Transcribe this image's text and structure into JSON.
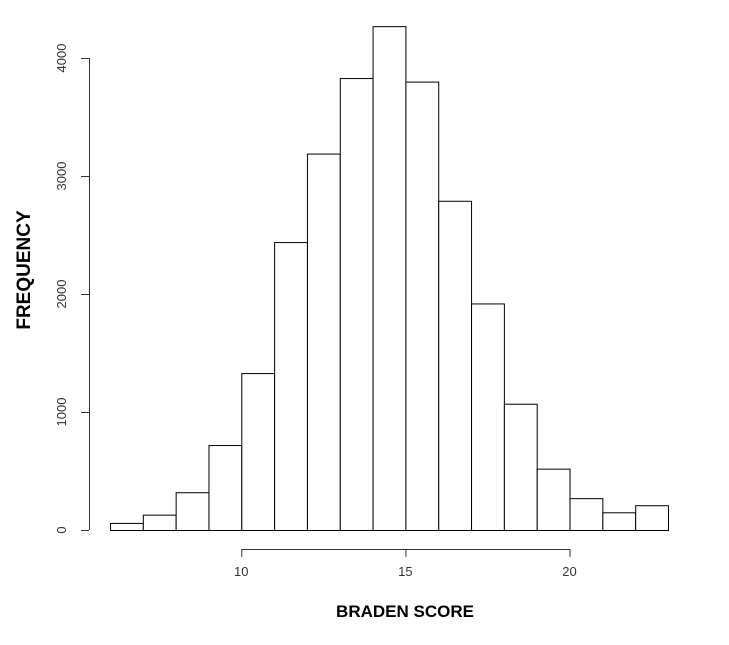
{
  "chart_data": {
    "type": "bar",
    "title": "",
    "xlabel": "BRADEN SCORE",
    "ylabel": "FREQUENCY",
    "bin_width": 1,
    "bins": [
      {
        "start": 6,
        "end": 7,
        "value": 60
      },
      {
        "start": 7,
        "end": 8,
        "value": 130
      },
      {
        "start": 8,
        "end": 9,
        "value": 320
      },
      {
        "start": 9,
        "end": 10,
        "value": 720
      },
      {
        "start": 10,
        "end": 11,
        "value": 1330
      },
      {
        "start": 11,
        "end": 12,
        "value": 2440
      },
      {
        "start": 12,
        "end": 13,
        "value": 3190
      },
      {
        "start": 13,
        "end": 14,
        "value": 3830
      },
      {
        "start": 14,
        "end": 15,
        "value": 4270
      },
      {
        "start": 15,
        "end": 16,
        "value": 3800
      },
      {
        "start": 16,
        "end": 17,
        "value": 2790
      },
      {
        "start": 17,
        "end": 18,
        "value": 1920
      },
      {
        "start": 18,
        "end": 19,
        "value": 1070
      },
      {
        "start": 19,
        "end": 20,
        "value": 520
      },
      {
        "start": 20,
        "end": 21,
        "value": 270
      },
      {
        "start": 21,
        "end": 22,
        "value": 150
      },
      {
        "start": 22,
        "end": 23,
        "value": 210
      }
    ],
    "xticks": [
      10,
      15,
      20
    ],
    "xticks_labels": [
      "10",
      "15",
      "20"
    ],
    "yticks": [
      0,
      1000,
      2000,
      3000,
      4000
    ],
    "yticks_labels": [
      "0",
      "1000",
      "2000",
      "3000",
      "4000"
    ],
    "xlim": [
      6,
      23
    ],
    "ylim": [
      0,
      4300
    ],
    "grid": false,
    "bar_fill": "#ffffff",
    "bar_stroke": "#000000"
  }
}
